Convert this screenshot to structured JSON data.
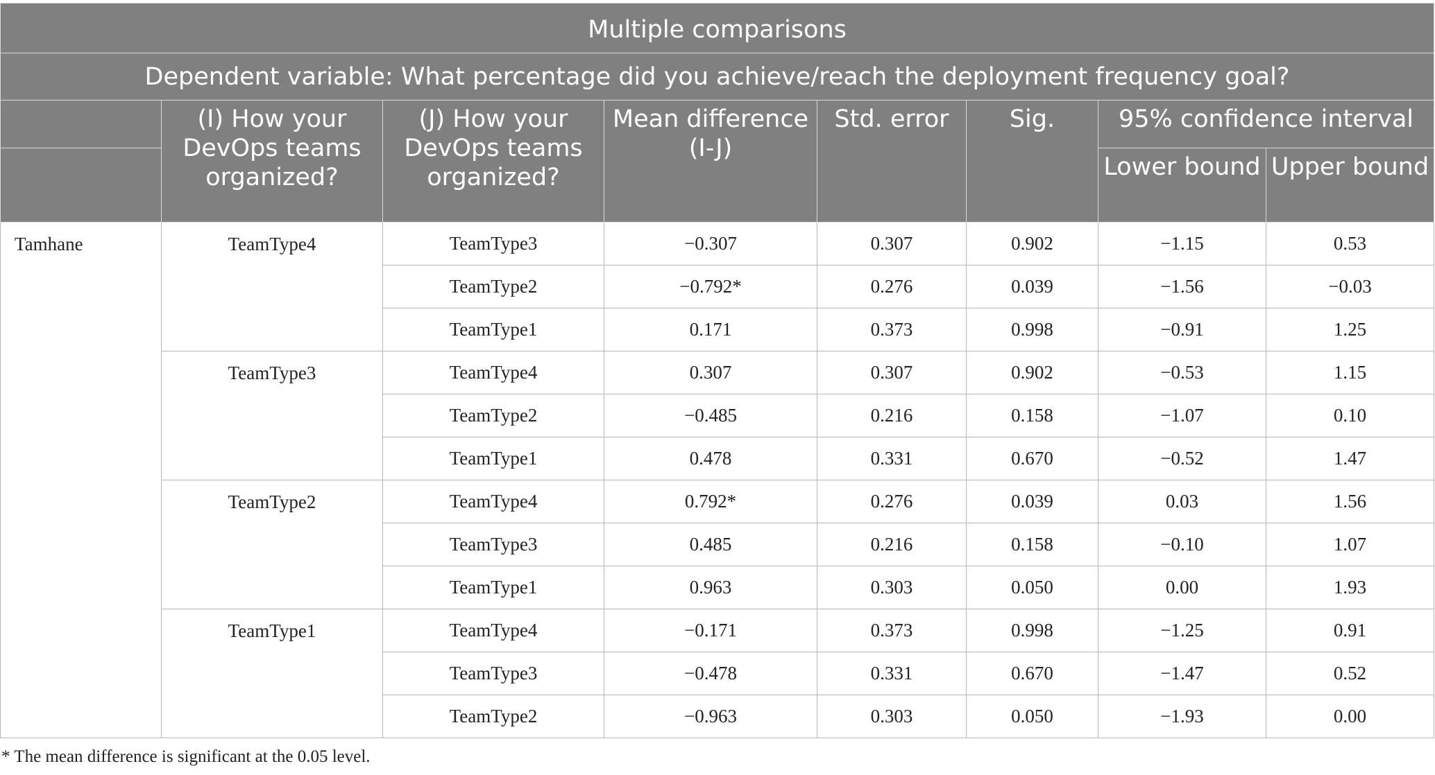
{
  "title": "Multiple comparisons",
  "subtitle": "Dependent variable: What percentage did you achieve/reach the deployment frequency goal?",
  "headers": {
    "i_group": "(I) How your DevOps teams organized?",
    "j_group": "(J) How your DevOps teams organized?",
    "mean_diff": "Mean difference (I-J)",
    "std_error": "Std. error",
    "sig": "Sig.",
    "ci": "95% confidence interval",
    "lower": "Lower bound",
    "upper": "Upper bound"
  },
  "method": "Tamhane",
  "groups": [
    {
      "i": "TeamType4",
      "rows": [
        {
          "j": "TeamType3",
          "mean_diff": "−0.307",
          "std_error": "0.307",
          "sig": "0.902",
          "lower": "−1.15",
          "upper": "0.53"
        },
        {
          "j": "TeamType2",
          "mean_diff": "−0.792*",
          "std_error": "0.276",
          "sig": "0.039",
          "lower": "−1.56",
          "upper": "−0.03"
        },
        {
          "j": "TeamType1",
          "mean_diff": "0.171",
          "std_error": "0.373",
          "sig": "0.998",
          "lower": "−0.91",
          "upper": "1.25"
        }
      ]
    },
    {
      "i": "TeamType3",
      "rows": [
        {
          "j": "TeamType4",
          "mean_diff": "0.307",
          "std_error": "0.307",
          "sig": "0.902",
          "lower": "−0.53",
          "upper": "1.15"
        },
        {
          "j": "TeamType2",
          "mean_diff": "−0.485",
          "std_error": "0.216",
          "sig": "0.158",
          "lower": "−1.07",
          "upper": "0.10"
        },
        {
          "j": "TeamType1",
          "mean_diff": "0.478",
          "std_error": "0.331",
          "sig": "0.670",
          "lower": "−0.52",
          "upper": "1.47"
        }
      ]
    },
    {
      "i": "TeamType2",
      "rows": [
        {
          "j": "TeamType4",
          "mean_diff": "0.792*",
          "std_error": "0.276",
          "sig": "0.039",
          "lower": "0.03",
          "upper": "1.56"
        },
        {
          "j": "TeamType3",
          "mean_diff": "0.485",
          "std_error": "0.216",
          "sig": "0.158",
          "lower": "−0.10",
          "upper": "1.07"
        },
        {
          "j": "TeamType1",
          "mean_diff": "0.963",
          "std_error": "0.303",
          "sig": "0.050",
          "lower": "0.00",
          "upper": "1.93"
        }
      ]
    },
    {
      "i": "TeamType1",
      "rows": [
        {
          "j": "TeamType4",
          "mean_diff": "−0.171",
          "std_error": "0.373",
          "sig": "0.998",
          "lower": "−1.25",
          "upper": "0.91"
        },
        {
          "j": "TeamType3",
          "mean_diff": "−0.478",
          "std_error": "0.331",
          "sig": "0.670",
          "lower": "−1.47",
          "upper": "0.52"
        },
        {
          "j": "TeamType2",
          "mean_diff": "−0.963",
          "std_error": "0.303",
          "sig": "0.050",
          "lower": "−1.93",
          "upper": "0.00"
        }
      ]
    }
  ],
  "footnote": "* The mean difference is significant at the 0.05 level."
}
